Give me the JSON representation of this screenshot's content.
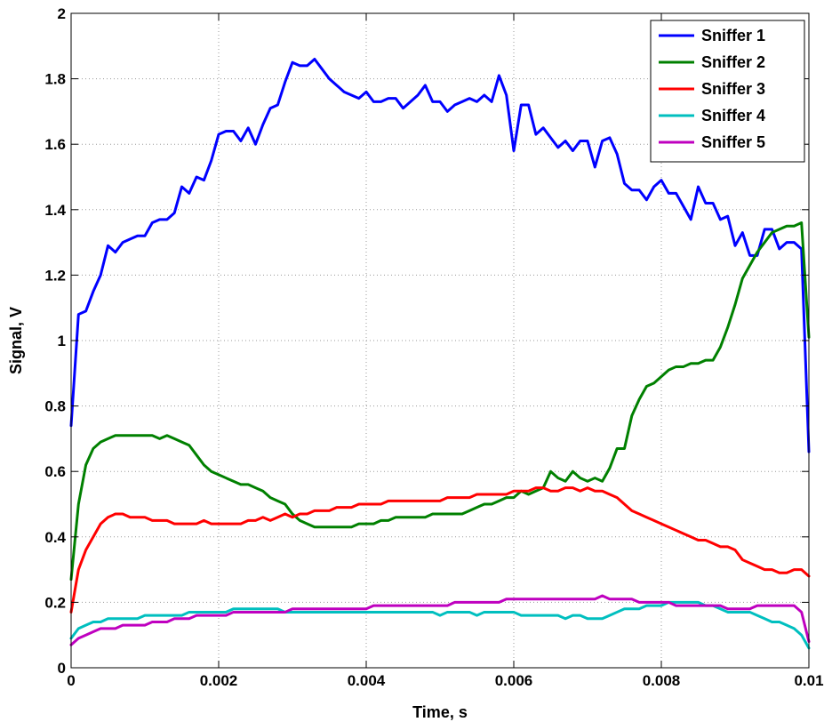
{
  "chart_data": {
    "type": "line",
    "title": "",
    "xlabel": "Time, s",
    "ylabel": "Signal, V",
    "xlim": [
      0,
      0.01
    ],
    "ylim": [
      0,
      2
    ],
    "x_ticks": [
      "0",
      "0.002",
      "0.004",
      "0.006",
      "0.008",
      "0.01"
    ],
    "y_ticks": [
      "0",
      "0.2",
      "0.4",
      "0.6",
      "0.8",
      "1",
      "1.2",
      "1.4",
      "1.6",
      "1.8",
      "2"
    ],
    "grid": true,
    "legend_position": "top-right",
    "x": [
      0,
      0.0001,
      0.0002,
      0.0003,
      0.0004,
      0.0005,
      0.0006,
      0.0007,
      0.0008,
      0.0009,
      0.001,
      0.0011,
      0.0012,
      0.0013,
      0.0014,
      0.0015,
      0.0016,
      0.0017,
      0.0018,
      0.0019,
      0.002,
      0.0021,
      0.0022,
      0.0023,
      0.0024,
      0.0025,
      0.0026,
      0.0027,
      0.0028,
      0.0029,
      0.003,
      0.0031,
      0.0032,
      0.0033,
      0.0034,
      0.0035,
      0.0036,
      0.0037,
      0.0038,
      0.0039,
      0.004,
      0.0041,
      0.0042,
      0.0043,
      0.0044,
      0.0045,
      0.0046,
      0.0047,
      0.0048,
      0.0049,
      0.005,
      0.0051,
      0.0052,
      0.0053,
      0.0054,
      0.0055,
      0.0056,
      0.0057,
      0.0058,
      0.0059,
      0.006,
      0.0061,
      0.0062,
      0.0063,
      0.0064,
      0.0065,
      0.0066,
      0.0067,
      0.0068,
      0.0069,
      0.007,
      0.0071,
      0.0072,
      0.0073,
      0.0074,
      0.0075,
      0.0076,
      0.0077,
      0.0078,
      0.0079,
      0.008,
      0.0081,
      0.0082,
      0.0083,
      0.0084,
      0.0085,
      0.0086,
      0.0087,
      0.0088,
      0.0089,
      0.009,
      0.0091,
      0.0092,
      0.0093,
      0.0094,
      0.0095,
      0.0096,
      0.0097,
      0.0098,
      0.0099,
      0.01
    ],
    "series": [
      {
        "name": "Sniffer 1",
        "color": "#0000ff",
        "values": [
          0.74,
          1.08,
          1.09,
          1.15,
          1.2,
          1.29,
          1.27,
          1.3,
          1.31,
          1.32,
          1.32,
          1.36,
          1.37,
          1.37,
          1.39,
          1.47,
          1.45,
          1.5,
          1.49,
          1.55,
          1.63,
          1.64,
          1.64,
          1.61,
          1.65,
          1.6,
          1.66,
          1.71,
          1.72,
          1.79,
          1.85,
          1.84,
          1.84,
          1.86,
          1.83,
          1.8,
          1.78,
          1.76,
          1.75,
          1.74,
          1.76,
          1.73,
          1.73,
          1.74,
          1.74,
          1.71,
          1.73,
          1.75,
          1.78,
          1.73,
          1.73,
          1.7,
          1.72,
          1.73,
          1.74,
          1.73,
          1.75,
          1.73,
          1.81,
          1.75,
          1.58,
          1.72,
          1.72,
          1.63,
          1.65,
          1.62,
          1.59,
          1.61,
          1.58,
          1.61,
          1.61,
          1.53,
          1.61,
          1.62,
          1.57,
          1.48,
          1.46,
          1.46,
          1.43,
          1.47,
          1.49,
          1.45,
          1.45,
          1.41,
          1.37,
          1.47,
          1.42,
          1.42,
          1.37,
          1.38,
          1.29,
          1.33,
          1.26,
          1.26,
          1.34,
          1.34,
          1.28,
          1.3,
          1.3,
          1.28,
          0.66
        ]
      },
      {
        "name": "Sniffer 2",
        "color": "#008000",
        "values": [
          0.27,
          0.5,
          0.62,
          0.67,
          0.69,
          0.7,
          0.71,
          0.71,
          0.71,
          0.71,
          0.71,
          0.71,
          0.7,
          0.71,
          0.7,
          0.69,
          0.68,
          0.65,
          0.62,
          0.6,
          0.59,
          0.58,
          0.57,
          0.56,
          0.56,
          0.55,
          0.54,
          0.52,
          0.51,
          0.5,
          0.47,
          0.45,
          0.44,
          0.43,
          0.43,
          0.43,
          0.43,
          0.43,
          0.43,
          0.44,
          0.44,
          0.44,
          0.45,
          0.45,
          0.46,
          0.46,
          0.46,
          0.46,
          0.46,
          0.47,
          0.47,
          0.47,
          0.47,
          0.47,
          0.48,
          0.49,
          0.5,
          0.5,
          0.51,
          0.52,
          0.52,
          0.54,
          0.53,
          0.54,
          0.55,
          0.6,
          0.58,
          0.57,
          0.6,
          0.58,
          0.57,
          0.58,
          0.57,
          0.61,
          0.67,
          0.67,
          0.77,
          0.82,
          0.86,
          0.87,
          0.89,
          0.91,
          0.92,
          0.92,
          0.93,
          0.93,
          0.94,
          0.94,
          0.98,
          1.04,
          1.11,
          1.19,
          1.23,
          1.27,
          1.3,
          1.33,
          1.34,
          1.35,
          1.35,
          1.36,
          1.01
        ]
      },
      {
        "name": "Sniffer 3",
        "color": "#ff0000",
        "values": [
          0.17,
          0.3,
          0.36,
          0.4,
          0.44,
          0.46,
          0.47,
          0.47,
          0.46,
          0.46,
          0.46,
          0.45,
          0.45,
          0.45,
          0.44,
          0.44,
          0.44,
          0.44,
          0.45,
          0.44,
          0.44,
          0.44,
          0.44,
          0.44,
          0.45,
          0.45,
          0.46,
          0.45,
          0.46,
          0.47,
          0.46,
          0.47,
          0.47,
          0.48,
          0.48,
          0.48,
          0.49,
          0.49,
          0.49,
          0.5,
          0.5,
          0.5,
          0.5,
          0.51,
          0.51,
          0.51,
          0.51,
          0.51,
          0.51,
          0.51,
          0.51,
          0.52,
          0.52,
          0.52,
          0.52,
          0.53,
          0.53,
          0.53,
          0.53,
          0.53,
          0.54,
          0.54,
          0.54,
          0.55,
          0.55,
          0.54,
          0.54,
          0.55,
          0.55,
          0.54,
          0.55,
          0.54,
          0.54,
          0.53,
          0.52,
          0.5,
          0.48,
          0.47,
          0.46,
          0.45,
          0.44,
          0.43,
          0.42,
          0.41,
          0.4,
          0.39,
          0.39,
          0.38,
          0.37,
          0.37,
          0.36,
          0.33,
          0.32,
          0.31,
          0.3,
          0.3,
          0.29,
          0.29,
          0.3,
          0.3,
          0.28
        ]
      },
      {
        "name": "Sniffer 4",
        "color": "#00bfbf",
        "values": [
          0.09,
          0.12,
          0.13,
          0.14,
          0.14,
          0.15,
          0.15,
          0.15,
          0.15,
          0.15,
          0.16,
          0.16,
          0.16,
          0.16,
          0.16,
          0.16,
          0.17,
          0.17,
          0.17,
          0.17,
          0.17,
          0.17,
          0.18,
          0.18,
          0.18,
          0.18,
          0.18,
          0.18,
          0.18,
          0.17,
          0.17,
          0.17,
          0.17,
          0.17,
          0.17,
          0.17,
          0.17,
          0.17,
          0.17,
          0.17,
          0.17,
          0.17,
          0.17,
          0.17,
          0.17,
          0.17,
          0.17,
          0.17,
          0.17,
          0.17,
          0.16,
          0.17,
          0.17,
          0.17,
          0.17,
          0.16,
          0.17,
          0.17,
          0.17,
          0.17,
          0.17,
          0.16,
          0.16,
          0.16,
          0.16,
          0.16,
          0.16,
          0.15,
          0.16,
          0.16,
          0.15,
          0.15,
          0.15,
          0.16,
          0.17,
          0.18,
          0.18,
          0.18,
          0.19,
          0.19,
          0.19,
          0.2,
          0.2,
          0.2,
          0.2,
          0.2,
          0.19,
          0.19,
          0.18,
          0.17,
          0.17,
          0.17,
          0.17,
          0.16,
          0.15,
          0.14,
          0.14,
          0.13,
          0.12,
          0.1,
          0.06
        ]
      },
      {
        "name": "Sniffer 5",
        "color": "#bf00bf",
        "values": [
          0.07,
          0.09,
          0.1,
          0.11,
          0.12,
          0.12,
          0.12,
          0.13,
          0.13,
          0.13,
          0.13,
          0.14,
          0.14,
          0.14,
          0.15,
          0.15,
          0.15,
          0.16,
          0.16,
          0.16,
          0.16,
          0.16,
          0.17,
          0.17,
          0.17,
          0.17,
          0.17,
          0.17,
          0.17,
          0.17,
          0.18,
          0.18,
          0.18,
          0.18,
          0.18,
          0.18,
          0.18,
          0.18,
          0.18,
          0.18,
          0.18,
          0.19,
          0.19,
          0.19,
          0.19,
          0.19,
          0.19,
          0.19,
          0.19,
          0.19,
          0.19,
          0.19,
          0.2,
          0.2,
          0.2,
          0.2,
          0.2,
          0.2,
          0.2,
          0.21,
          0.21,
          0.21,
          0.21,
          0.21,
          0.21,
          0.21,
          0.21,
          0.21,
          0.21,
          0.21,
          0.21,
          0.21,
          0.22,
          0.21,
          0.21,
          0.21,
          0.21,
          0.2,
          0.2,
          0.2,
          0.2,
          0.2,
          0.19,
          0.19,
          0.19,
          0.19,
          0.19,
          0.19,
          0.19,
          0.18,
          0.18,
          0.18,
          0.18,
          0.19,
          0.19,
          0.19,
          0.19,
          0.19,
          0.19,
          0.17,
          0.08
        ]
      }
    ]
  }
}
